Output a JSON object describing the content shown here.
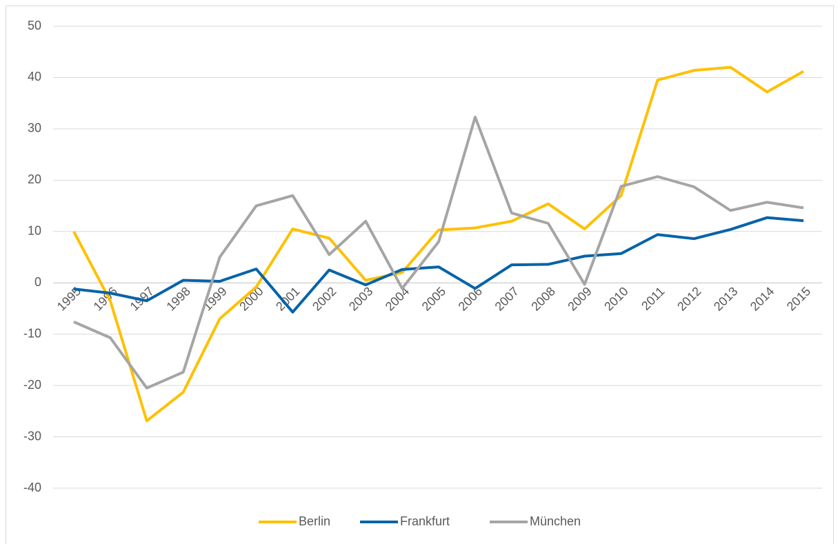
{
  "chart_data": {
    "type": "line",
    "categories": [
      "1995",
      "1996",
      "1997",
      "1998",
      "1999",
      "2000",
      "2001",
      "2002",
      "2003",
      "2004",
      "2005",
      "2006",
      "2007",
      "2008",
      "2009",
      "2010",
      "2011",
      "2012",
      "2013",
      "2014",
      "2015"
    ],
    "series": [
      {
        "name": "Berlin",
        "color": "#ffc000",
        "values": [
          10,
          -3.5,
          -26.9,
          -21.3,
          -7,
          -0.8,
          10.5,
          8.7,
          0.5,
          2,
          10.3,
          10.7,
          12,
          15.4,
          10.5,
          17,
          39.5,
          41.4,
          42,
          37.2,
          41.2
        ]
      },
      {
        "name": "Frankfurt",
        "color": "#0563a8",
        "values": [
          -1.2,
          -2,
          -3.5,
          0.5,
          0.3,
          2.7,
          -5.7,
          2.5,
          -0.4,
          2.6,
          3.1,
          -1.1,
          3.5,
          3.6,
          5.2,
          5.7,
          9.4,
          8.6,
          10.4,
          12.7,
          12.1
        ]
      },
      {
        "name": "München",
        "color": "#a5a5a5",
        "values": [
          -7.6,
          -10.7,
          -20.5,
          -17.4,
          5,
          15,
          17,
          5.5,
          12,
          -1.1,
          8,
          32.3,
          13.6,
          11.6,
          -0.3,
          18.8,
          20.7,
          18.7,
          14.1,
          15.7,
          14.6
        ]
      }
    ],
    "ylim": [
      -40,
      50
    ],
    "yticks": [
      -40,
      -30,
      -20,
      -10,
      0,
      10,
      20,
      30,
      40,
      50
    ],
    "grid": true,
    "legend": "bottom"
  }
}
